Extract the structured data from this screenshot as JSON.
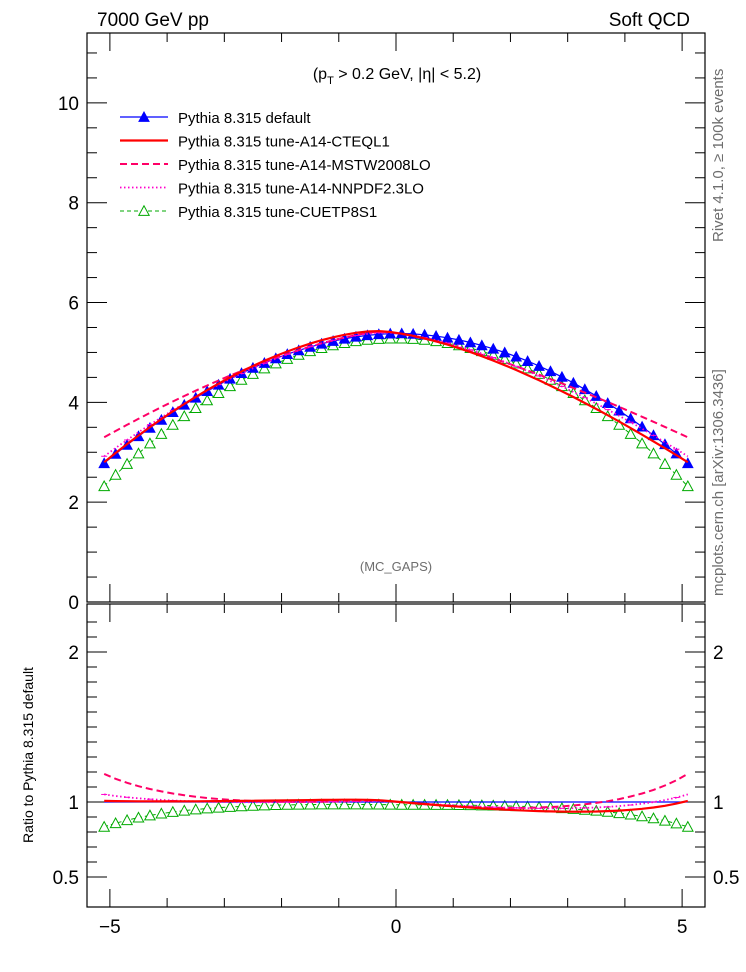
{
  "header": {
    "left_label": "7000 GeV pp",
    "right_label": "Soft QCD"
  },
  "side_labels": {
    "rivet": "Rivet 4.1.0, ≥ 100k events",
    "mcplots": "mcplots.cern.ch [arXiv:1306.3436]"
  },
  "chart_data": [
    {
      "type": "line",
      "panel": "main",
      "cut_label": "(p_T > 0.2 GeV, |η| < 5.2)",
      "cut_parts": {
        "open": "(p",
        "sub": "T",
        "rest": " > 0.2 GeV, |η| < 5.2)"
      },
      "watermark": "(MC_GAPS)",
      "xlim": [
        -5.4,
        5.4
      ],
      "ylim": [
        0,
        11.4
      ],
      "yticks": [
        0,
        2,
        4,
        6,
        8,
        10
      ],
      "ytick_labels": [
        "0",
        "2",
        "4",
        "6",
        "8",
        "10"
      ],
      "x_range": [
        -5.1,
        5.1
      ],
      "n_points": 52,
      "series": [
        {
          "name": "Pythia 8.315 default",
          "color": "#0000ff",
          "style": "solid",
          "marker": "filled-triangle",
          "centre": 5.38,
          "edge": 2.78,
          "shape": 1.9,
          "peak_shift": 0.05
        },
        {
          "name": "Pythia 8.315 tune-A14-CTEQL1",
          "color": "#ff0000",
          "style": "solid-thick",
          "marker": "none",
          "centre": 5.43,
          "edge": 2.8,
          "shape": 1.6,
          "peak_shift": -0.35
        },
        {
          "name": "Pythia 8.315 tune-A14-MSTW2008LO",
          "color": "#ff0066",
          "style": "dashed",
          "marker": "none",
          "centre": 5.42,
          "edge": 3.3,
          "shape": 1.4,
          "peak_shift": -0.25
        },
        {
          "name": "Pythia 8.315 tune-A14-NNPDF2.3LO",
          "color": "#ff00cc",
          "style": "dotted",
          "marker": "none",
          "centre": 5.4,
          "edge": 2.92,
          "shape": 1.6,
          "peak_shift": -0.2
        },
        {
          "name": "Pythia 8.315 tune-CUETP8S1",
          "color": "#00aa00",
          "style": "dashed-thin",
          "marker": "open-triangle",
          "centre": 5.28,
          "edge": 2.32,
          "shape": 2.0,
          "peak_shift": 0.0
        }
      ]
    },
    {
      "type": "line",
      "panel": "ratio",
      "ylabel": "Ratio to Pythia 8.315 default",
      "xlim": [
        -5.4,
        5.4
      ],
      "ylim": [
        0.3,
        2.32
      ],
      "yticks": [
        0.5,
        1,
        2
      ],
      "ytick_labels": [
        "0.5",
        "1",
        "2"
      ],
      "xticks": [
        -5,
        0,
        5
      ],
      "xtick_labels": [
        "−5",
        "0",
        "5"
      ]
    }
  ]
}
